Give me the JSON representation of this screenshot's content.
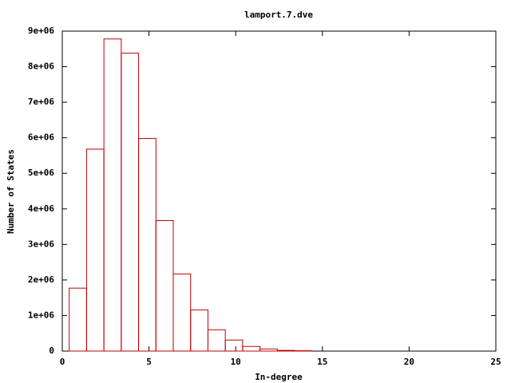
{
  "chart_data": {
    "type": "histogram",
    "title": "lamport.7.dve",
    "x_label": "In-degree",
    "y_label": "Number of States",
    "bins": [
      0.4,
      1.4,
      2.4,
      3.4,
      4.4,
      5.4,
      6.4,
      7.4,
      8.4,
      9.4,
      10.4,
      11.4,
      12.4,
      13.4,
      14.4
    ],
    "values": [
      1770000,
      5680000,
      8780000,
      8380000,
      5980000,
      3670000,
      2170000,
      1160000,
      600000,
      310000,
      130000,
      60000,
      20000,
      10000
    ],
    "color": "#c00000",
    "xlim": [
      0,
      25
    ],
    "xticks": [
      0,
      5,
      10,
      15,
      20,
      25
    ],
    "ylim": [
      0,
      9000000
    ],
    "yticks": [
      0,
      {
        "value": 1000000,
        "label": "1e+06"
      },
      {
        "value": 2000000,
        "label": "2e+06"
      },
      {
        "value": 3000000,
        "label": "3e+06"
      },
      {
        "value": 4000000,
        "label": "4e+06"
      },
      {
        "value": 5000000,
        "label": "5e+06"
      },
      {
        "value": 6000000,
        "label": "6e+06"
      },
      {
        "value": 7000000,
        "label": "7e+06"
      },
      {
        "value": 8000000,
        "label": "8e+06"
      },
      {
        "value": 9000000,
        "label": "9e+06"
      }
    ]
  }
}
